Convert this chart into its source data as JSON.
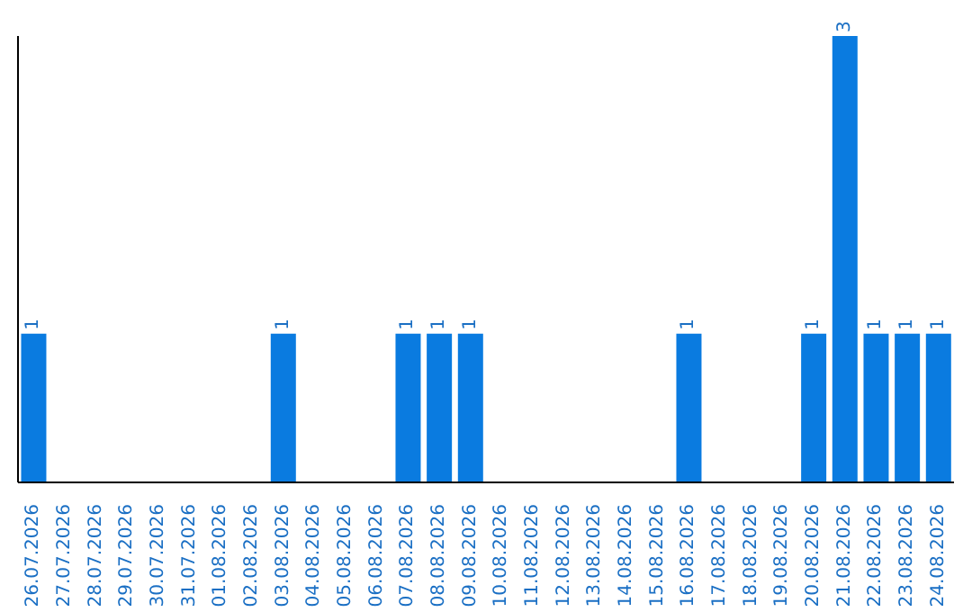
{
  "chart_data": {
    "type": "bar",
    "categories": [
      "26.07.2026",
      "27.07.2026",
      "28.07.2026",
      "29.07.2026",
      "30.07.2026",
      "31.07.2026",
      "01.08.2026",
      "02.08.2026",
      "03.08.2026",
      "04.08.2026",
      "05.08.2026",
      "06.08.2026",
      "07.08.2026",
      "08.08.2026",
      "09.08.2026",
      "10.08.2026",
      "11.08.2026",
      "12.08.2026",
      "13.08.2026",
      "14.08.2026",
      "15.08.2026",
      "16.08.2026",
      "17.08.2026",
      "18.08.2026",
      "19.08.2026",
      "20.08.2026",
      "21.08.2026",
      "22.08.2026",
      "23.08.2026",
      "24.08.2026"
    ],
    "values": [
      1,
      0,
      0,
      0,
      0,
      0,
      0,
      0,
      1,
      0,
      0,
      0,
      1,
      1,
      1,
      0,
      0,
      0,
      0,
      0,
      0,
      1,
      0,
      0,
      0,
      1,
      3,
      1,
      1,
      1
    ],
    "value_labels": [
      "1",
      null,
      null,
      null,
      null,
      null,
      null,
      null,
      "1",
      null,
      null,
      null,
      "1",
      "1",
      "1",
      null,
      null,
      null,
      null,
      null,
      null,
      "1",
      null,
      null,
      null,
      "1",
      "3",
      "1",
      "1",
      "1"
    ],
    "color": "#0a7be0",
    "grid": false,
    "legend": false
  }
}
